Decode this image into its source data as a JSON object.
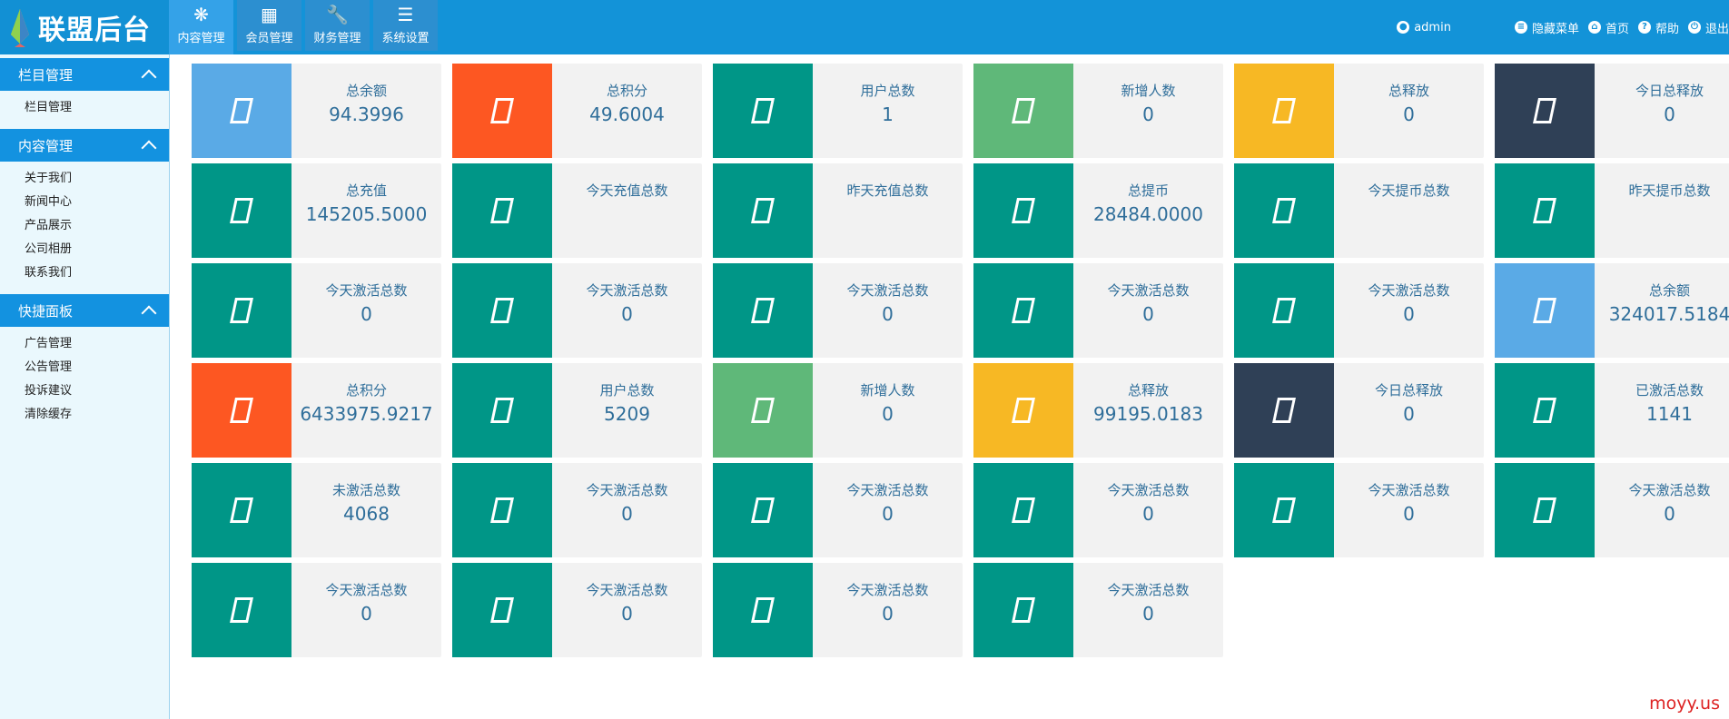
{
  "app": {
    "title": "联盟后台"
  },
  "nav": {
    "tabs": [
      {
        "label": "内容管理",
        "icon": "snowflake-icon",
        "glyph": "❋",
        "active": true
      },
      {
        "label": "会员管理",
        "icon": "grid-icon",
        "glyph": "▦",
        "active": false
      },
      {
        "label": "财务管理",
        "icon": "wrench-icon",
        "glyph": "🔧",
        "active": false
      },
      {
        "label": "系统设置",
        "icon": "list-icon",
        "glyph": "☰",
        "active": false
      }
    ]
  },
  "topright": {
    "user": "admin",
    "hide_menu": "隐藏菜单",
    "home": "首页",
    "help": "帮助",
    "logout": "退出"
  },
  "sidebar": {
    "sections": [
      {
        "title": "栏目管理",
        "items": [
          "栏目管理"
        ]
      },
      {
        "title": "内容管理",
        "items": [
          "关于我们",
          "新闻中心",
          "产品展示",
          "公司相册",
          "联系我们"
        ]
      },
      {
        "title": "快捷面板",
        "items": [
          "广告管理",
          "公告管理",
          "投诉建议",
          "清除缓存"
        ]
      }
    ]
  },
  "colors": {
    "blue": "#5aaae6",
    "orange": "#fd5722",
    "teal": "#009687",
    "green": "#5fb879",
    "yellow": "#f7b824",
    "navy": "#2f4056"
  },
  "cards": [
    {
      "label": "总余额",
      "value": "94.3996",
      "color": "blue"
    },
    {
      "label": "总积分",
      "value": "49.6004",
      "color": "orange"
    },
    {
      "label": "用户总数",
      "value": "1",
      "color": "teal"
    },
    {
      "label": "新增人数",
      "value": "0",
      "color": "green"
    },
    {
      "label": "总释放",
      "value": "0",
      "color": "yellow"
    },
    {
      "label": "今日总释放",
      "value": "0",
      "color": "navy"
    },
    {
      "label": "总充值",
      "value": "145205.5000",
      "color": "teal"
    },
    {
      "label": "今天充值总数",
      "value": "",
      "color": "teal"
    },
    {
      "label": "昨天充值总数",
      "value": "",
      "color": "teal"
    },
    {
      "label": "总提币",
      "value": "28484.0000",
      "color": "teal"
    },
    {
      "label": "今天提币总数",
      "value": "",
      "color": "teal"
    },
    {
      "label": "昨天提币总数",
      "value": "",
      "color": "teal"
    },
    {
      "label": "今天激活总数",
      "value": "0",
      "color": "teal"
    },
    {
      "label": "今天激活总数",
      "value": "0",
      "color": "teal"
    },
    {
      "label": "今天激活总数",
      "value": "0",
      "color": "teal"
    },
    {
      "label": "今天激活总数",
      "value": "0",
      "color": "teal"
    },
    {
      "label": "今天激活总数",
      "value": "0",
      "color": "teal"
    },
    {
      "label": "总余额",
      "value": "324017.5184",
      "color": "blue"
    },
    {
      "label": "总积分",
      "value": "6433975.9217",
      "color": "orange"
    },
    {
      "label": "用户总数",
      "value": "5209",
      "color": "teal"
    },
    {
      "label": "新增人数",
      "value": "0",
      "color": "green"
    },
    {
      "label": "总释放",
      "value": "99195.0183",
      "color": "yellow"
    },
    {
      "label": "今日总释放",
      "value": "0",
      "color": "navy"
    },
    {
      "label": "已激活总数",
      "value": "1141",
      "color": "teal"
    },
    {
      "label": "未激活总数",
      "value": "4068",
      "color": "teal"
    },
    {
      "label": "今天激活总数",
      "value": "0",
      "color": "teal"
    },
    {
      "label": "今天激活总数",
      "value": "0",
      "color": "teal"
    },
    {
      "label": "今天激活总数",
      "value": "0",
      "color": "teal"
    },
    {
      "label": "今天激活总数",
      "value": "0",
      "color": "teal"
    },
    {
      "label": "今天激活总数",
      "value": "0",
      "color": "teal"
    },
    {
      "label": "今天激活总数",
      "value": "0",
      "color": "teal"
    },
    {
      "label": "今天激活总数",
      "value": "0",
      "color": "teal"
    },
    {
      "label": "今天激活总数",
      "value": "0",
      "color": "teal"
    },
    {
      "label": "今天激活总数",
      "value": "0",
      "color": "teal"
    }
  ],
  "watermark": "moyy.us"
}
